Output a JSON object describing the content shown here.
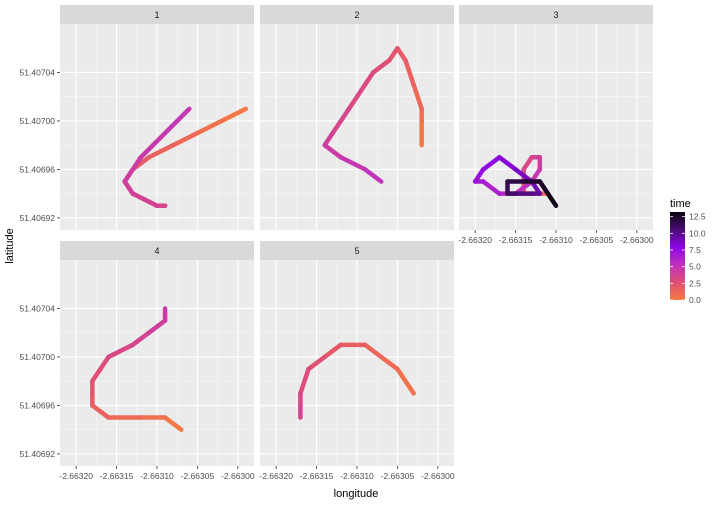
{
  "chart_data": {
    "type": "line",
    "facet_variable": "id",
    "xlabel": "longitude",
    "ylabel": "latitude",
    "xlim": [
      -2.66322,
      -2.66298
    ],
    "ylim": [
      51.40691,
      51.40708
    ],
    "x_ticks": [
      -2.6632,
      -2.66315,
      -2.6631,
      -2.66305,
      -2.663
    ],
    "x_tick_labels": [
      "-2.66320",
      "-2.66315",
      "-2.66310",
      "-2.66305",
      "-2.66300"
    ],
    "y_ticks": [
      51.40692,
      51.40696,
      51.407,
      51.40704
    ],
    "y_tick_labels": [
      "51.40692",
      "51.40696",
      "51.40700",
      "51.40704"
    ],
    "grid": true,
    "legend": {
      "title": "time",
      "placement": "right",
      "type": "colorbar",
      "range": [
        0,
        13.2
      ],
      "ticks": [
        0,
        2.5,
        5,
        7.5,
        10,
        12.5
      ],
      "tick_labels": [
        "0.0",
        "2.5",
        "5.0",
        "7.5",
        "10.0",
        "12.5"
      ],
      "colors": [
        "#F57C43",
        "#E04F75",
        "#C133BD",
        "#8E06E6",
        "#4B0D73",
        "#0B040F"
      ]
    },
    "panels": [
      {
        "label": "1",
        "series": [
          {
            "points": [
              [
                -2.66299,
                51.40701,
                0.0
              ],
              [
                -2.66302,
                51.407,
                0.4
              ],
              [
                -2.66305,
                51.40699,
                0.8
              ],
              [
                -2.66308,
                51.40698,
                1.2
              ],
              [
                -2.66311,
                51.40697,
                1.6
              ],
              [
                -2.66313,
                51.40696,
                2.0
              ],
              [
                -2.66314,
                51.40695,
                2.4
              ],
              [
                -2.66313,
                51.40694,
                2.8
              ],
              [
                -2.6631,
                51.40693,
                3.2
              ],
              [
                -2.66309,
                51.40693,
                3.4
              ],
              [
                -2.6631,
                51.40693,
                3.6
              ],
              [
                -2.66313,
                51.40694,
                3.9
              ],
              [
                -2.66314,
                51.40695,
                4.2
              ],
              [
                -2.66312,
                51.40697,
                4.5
              ],
              [
                -2.66309,
                51.40699,
                4.8
              ],
              [
                -2.66306,
                51.40701,
                5.1
              ]
            ]
          }
        ]
      },
      {
        "label": "2",
        "series": [
          {
            "points": [
              [
                -2.66302,
                51.40698,
                0.0
              ],
              [
                -2.66302,
                51.407,
                0.5
              ],
              [
                -2.66302,
                51.40701,
                0.9
              ],
              [
                -2.66303,
                51.40703,
                1.3
              ],
              [
                -2.66304,
                51.40705,
                1.7
              ],
              [
                -2.66305,
                51.40706,
                2.1
              ],
              [
                -2.66306,
                51.40705,
                2.5
              ],
              [
                -2.66308,
                51.40704,
                2.9
              ],
              [
                -2.66311,
                51.40701,
                3.3
              ],
              [
                -2.66313,
                51.40699,
                3.7
              ],
              [
                -2.66314,
                51.40698,
                4.1
              ],
              [
                -2.66312,
                51.40697,
                4.6
              ],
              [
                -2.66309,
                51.40696,
                5.0
              ],
              [
                -2.66307,
                51.40695,
                5.4
              ]
            ]
          }
        ]
      },
      {
        "label": "3",
        "series": [
          {
            "points": [
              [
                -2.66313,
                51.40695,
                0.0
              ],
              [
                -2.66312,
                51.40695,
                0.5
              ],
              [
                -2.66311,
                51.40694,
                1.0
              ],
              [
                -2.66312,
                51.40694,
                1.5
              ],
              [
                -2.66314,
                51.40694,
                2.0
              ],
              [
                -2.66314,
                51.40695,
                2.5
              ],
              [
                -2.66314,
                51.40696,
                3.0
              ],
              [
                -2.66313,
                51.40697,
                3.5
              ],
              [
                -2.66312,
                51.40697,
                4.0
              ],
              [
                -2.66312,
                51.40696,
                4.5
              ],
              [
                -2.66313,
                51.40695,
                5.0
              ],
              [
                -2.66315,
                51.40694,
                5.5
              ],
              [
                -2.66317,
                51.40694,
                6.0
              ],
              [
                -2.66319,
                51.40695,
                6.5
              ],
              [
                -2.6632,
                51.40695,
                7.0
              ],
              [
                -2.66319,
                51.40696,
                7.5
              ],
              [
                -2.66317,
                51.40697,
                8.0
              ],
              [
                -2.66315,
                51.40696,
                8.5
              ],
              [
                -2.66313,
                51.40695,
                9.0
              ],
              [
                -2.66312,
                51.40694,
                9.5
              ],
              [
                -2.66313,
                51.40694,
                10.0
              ],
              [
                -2.66315,
                51.40694,
                10.5
              ],
              [
                -2.66316,
                51.40694,
                11.0
              ],
              [
                -2.66316,
                51.40695,
                11.5
              ],
              [
                -2.66314,
                51.40695,
                12.0
              ],
              [
                -2.66312,
                51.40695,
                12.4
              ],
              [
                -2.66311,
                51.40694,
                12.8
              ],
              [
                -2.6631,
                51.40693,
                13.2
              ]
            ]
          }
        ]
      },
      {
        "label": "4",
        "series": [
          {
            "points": [
              [
                -2.66307,
                51.40694,
                0.0
              ],
              [
                -2.66309,
                51.40695,
                0.4
              ],
              [
                -2.66312,
                51.40695,
                0.8
              ],
              [
                -2.66316,
                51.40695,
                1.3
              ],
              [
                -2.66318,
                51.40696,
                1.7
              ],
              [
                -2.66318,
                51.40697,
                2.1
              ],
              [
                -2.66318,
                51.40698,
                2.5
              ],
              [
                -2.66317,
                51.40699,
                2.8
              ],
              [
                -2.66316,
                51.407,
                3.1
              ],
              [
                -2.66313,
                51.40701,
                3.5
              ],
              [
                -2.66311,
                51.40702,
                3.9
              ],
              [
                -2.66309,
                51.40703,
                4.3
              ],
              [
                -2.66309,
                51.40704,
                4.6
              ]
            ]
          }
        ]
      },
      {
        "label": "5",
        "series": [
          {
            "points": [
              [
                -2.66303,
                51.40697,
                0.0
              ],
              [
                -2.66303,
                51.40697,
                0.3
              ],
              [
                -2.66305,
                51.40699,
                0.7
              ],
              [
                -2.66307,
                51.407,
                1.1
              ],
              [
                -2.66309,
                51.40701,
                1.5
              ],
              [
                -2.66312,
                51.40701,
                1.9
              ],
              [
                -2.66314,
                51.407,
                2.3
              ],
              [
                -2.66316,
                51.40699,
                2.7
              ],
              [
                -2.66317,
                51.40697,
                3.1
              ],
              [
                -2.66317,
                51.40696,
                3.5
              ],
              [
                -2.66317,
                51.40695,
                3.8
              ]
            ]
          }
        ]
      }
    ]
  }
}
